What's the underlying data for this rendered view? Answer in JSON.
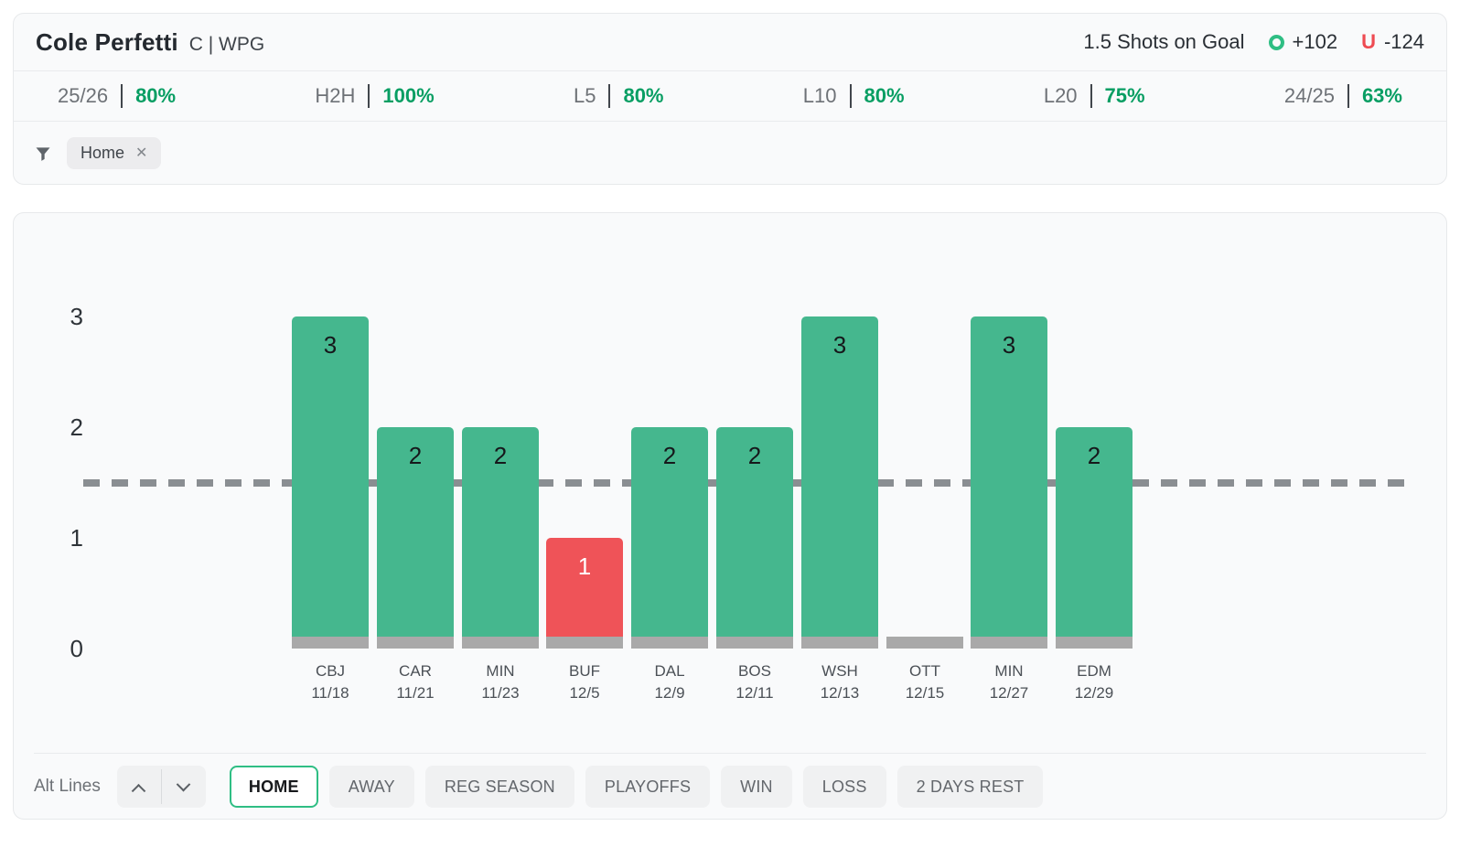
{
  "header": {
    "player": "Cole Perfetti",
    "position_team": "C | WPG",
    "prop": "1.5 Shots on Goal",
    "over_label": "O",
    "over_odds": "+102",
    "under_label": "U",
    "under_odds": "-124",
    "over_color": "#2fbe84",
    "under_color": "#ee4b52",
    "stats": [
      {
        "label": "25/26",
        "value": "80%"
      },
      {
        "label": "H2H",
        "value": "100%"
      },
      {
        "label": "L5",
        "value": "80%"
      },
      {
        "label": "L10",
        "value": "80%"
      },
      {
        "label": "L20",
        "value": "75%"
      },
      {
        "label": "24/25",
        "value": "63%"
      }
    ],
    "filter_icon": "funnel-icon",
    "active_filters": [
      {
        "label": "Home",
        "close_icon": "close-icon"
      }
    ]
  },
  "chart_data": {
    "type": "bar",
    "title": "",
    "xlabel": "",
    "ylabel": "",
    "categories": [
      "CBJ",
      "CAR",
      "MIN",
      "BUF",
      "DAL",
      "BOS",
      "WSH",
      "OTT",
      "MIN",
      "EDM"
    ],
    "dates": [
      "11/18",
      "11/21",
      "11/23",
      "12/5",
      "12/9",
      "12/11",
      "12/13",
      "12/15",
      "12/27",
      "12/29"
    ],
    "values": [
      3,
      2,
      2,
      1,
      2,
      2,
      3,
      0,
      3,
      2
    ],
    "prop_line": 1.5,
    "ylim": [
      0,
      3
    ],
    "yticks": [
      0,
      1,
      2,
      3
    ],
    "grid": false,
    "legend": null,
    "colors": {
      "over": "#45b78e",
      "under": "#ef5358",
      "push": "#a9a9a9",
      "line": "#8a8e92"
    },
    "value_label_color_over": "#16181b",
    "value_label_color_under": "#ffffff"
  },
  "controls": {
    "alt_lines_label": "Alt Lines",
    "alt_up_icon": "chevron-up-icon",
    "alt_down_icon": "chevron-down-icon",
    "filter_buttons": [
      {
        "label": "HOME",
        "active": true
      },
      {
        "label": "AWAY",
        "active": false
      },
      {
        "label": "REG SEASON",
        "active": false
      },
      {
        "label": "PLAYOFFS",
        "active": false
      },
      {
        "label": "WIN",
        "active": false
      },
      {
        "label": "LOSS",
        "active": false
      },
      {
        "label": "2 DAYS REST",
        "active": false
      }
    ]
  }
}
